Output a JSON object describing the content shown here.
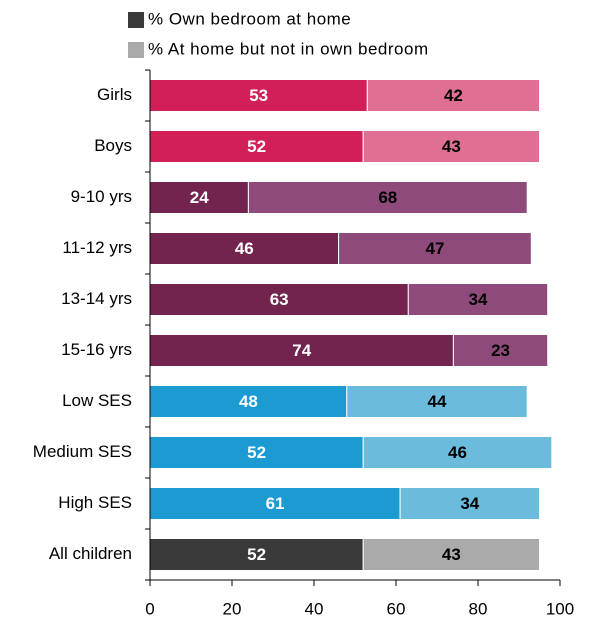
{
  "chart_data": {
    "type": "stacked_bar_horizontal",
    "categories": [
      "Girls",
      "Boys",
      "9-10 yrs",
      "11-12 yrs",
      "13-14 yrs",
      "15-16 yrs",
      "Low  SES",
      "Medium SES",
      "High SES",
      "All children"
    ],
    "series": [
      {
        "name": "% Own bedroom at home",
        "color": "#3a3a3a",
        "label_color": "#ffffff",
        "values": [
          53,
          52,
          24,
          46,
          63,
          74,
          48,
          52,
          61,
          52
        ],
        "bar_colors": [
          "#d21f58",
          "#d21f58",
          "#72244f",
          "#72244f",
          "#72244f",
          "#72244f",
          "#1b9bd1",
          "#1b9bd1",
          "#1b9bd1",
          "#3a3a3a"
        ]
      },
      {
        "name": "% At home but not in own bedroom",
        "color": "#aaaaaa",
        "label_color": "#000000",
        "values": [
          42,
          43,
          68,
          47,
          34,
          23,
          44,
          46,
          34,
          43
        ],
        "bar_colors": [
          "#e07093",
          "#e07093",
          "#8e4a7a",
          "#8e4a7a",
          "#8e4a7a",
          "#8e4a7a",
          "#6bbbdd",
          "#6bbbdd",
          "#6bbbdd",
          "#aaaaaa"
        ]
      }
    ],
    "xlim": [
      0,
      100
    ],
    "xticks": [
      0,
      20,
      40,
      60,
      80,
      100
    ],
    "legend": "top"
  }
}
